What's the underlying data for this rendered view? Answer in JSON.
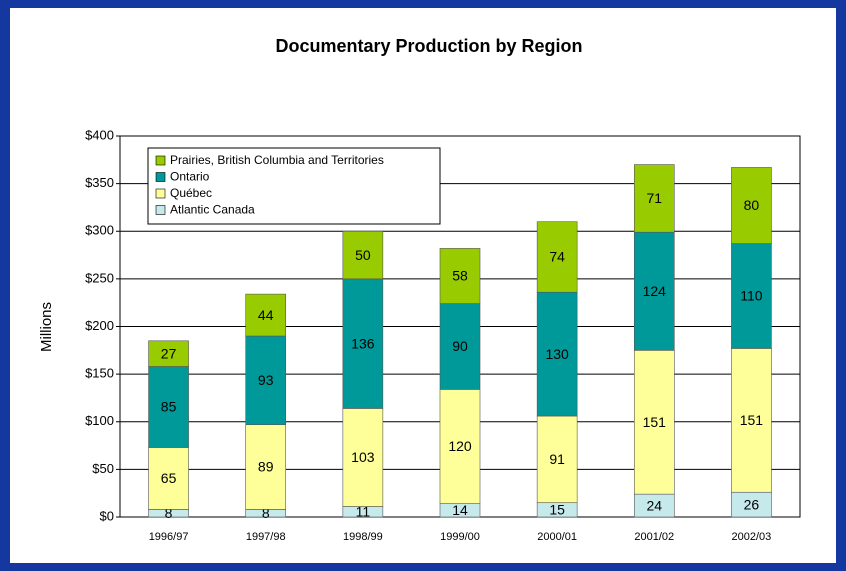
{
  "chart_data": {
    "type": "stacked_bar",
    "title": "Documentary Production by Region",
    "ylabel": "Millions",
    "categories": [
      "1996/97",
      "1997/98",
      "1998/99",
      "1999/00",
      "2000/01",
      "2001/02",
      "2002/03"
    ],
    "series": [
      {
        "name": "Atlantic Canada",
        "color": "#c6e9ec",
        "values": [
          8,
          8,
          11,
          14,
          15,
          24,
          26
        ]
      },
      {
        "name": "Québec",
        "color": "#ffff99",
        "values": [
          65,
          89,
          103,
          120,
          91,
          151,
          151
        ]
      },
      {
        "name": "Ontario",
        "color": "#009999",
        "values": [
          85,
          93,
          136,
          90,
          130,
          124,
          110
        ]
      },
      {
        "name": "Prairies, British Columbia and Territories",
        "color": "#99cc00",
        "values": [
          27,
          44,
          50,
          58,
          74,
          71,
          80
        ]
      }
    ],
    "ylim": [
      0,
      400
    ],
    "yticks": [
      {
        "value": 0,
        "label": "$0"
      },
      {
        "value": 50,
        "label": "$50"
      },
      {
        "value": 100,
        "label": "$100"
      },
      {
        "value": 150,
        "label": "$150"
      },
      {
        "value": 200,
        "label": "$200"
      },
      {
        "value": 250,
        "label": "$250"
      },
      {
        "value": 300,
        "label": "$300"
      },
      {
        "value": 350,
        "label": "$350"
      },
      {
        "value": 400,
        "label": "$400"
      }
    ],
    "grid": true,
    "legend": "upper left"
  }
}
